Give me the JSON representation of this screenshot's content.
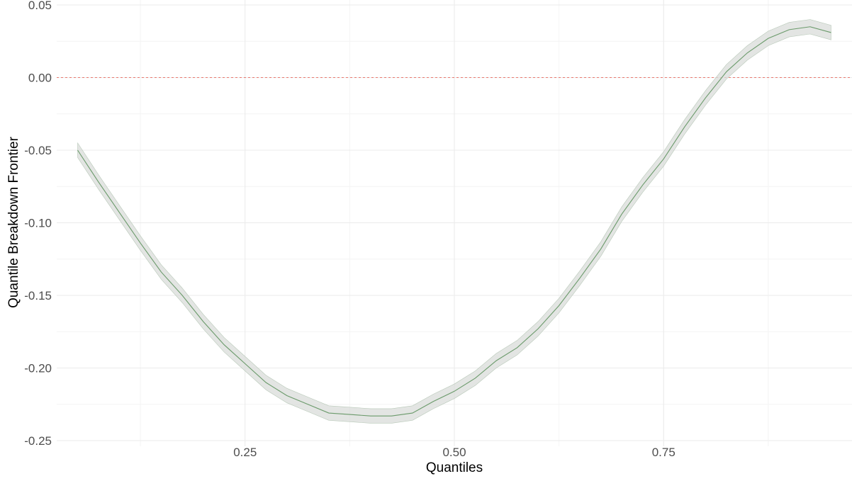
{
  "chart_data": {
    "type": "line",
    "title": "",
    "xlabel": "Quantiles",
    "ylabel": "Quantile Breakdown Frontier",
    "xlim": [
      0.025,
      0.975
    ],
    "ylim": [
      -0.25,
      0.05
    ],
    "x_ticks": [
      {
        "value": 0.25,
        "label": "0.25"
      },
      {
        "value": 0.5,
        "label": "0.50"
      },
      {
        "value": 0.75,
        "label": "0.75"
      }
    ],
    "y_ticks": [
      {
        "value": 0.05,
        "label": "0.05"
      },
      {
        "value": 0.0,
        "label": "0.00"
      },
      {
        "value": -0.05,
        "label": "-0.05"
      },
      {
        "value": -0.1,
        "label": "-0.10"
      },
      {
        "value": -0.15,
        "label": "-0.15"
      },
      {
        "value": -0.2,
        "label": "-0.20"
      },
      {
        "value": -0.25,
        "label": "-0.25"
      }
    ],
    "x_minor_ticks": [
      0.125,
      0.375,
      0.625,
      0.875
    ],
    "y_minor_ticks": [
      0.025,
      -0.025,
      -0.075,
      -0.125,
      -0.175,
      -0.225
    ],
    "grid": true,
    "reference_line": {
      "y": 0.0,
      "style": "dashed",
      "color": "#e8786f"
    },
    "series": [
      {
        "color": "#6b9a6b",
        "band_color": "#d9dcd9",
        "x": [
          0.05,
          0.075,
          0.1,
          0.125,
          0.15,
          0.175,
          0.2,
          0.225,
          0.25,
          0.275,
          0.3,
          0.325,
          0.35,
          0.375,
          0.4,
          0.425,
          0.45,
          0.475,
          0.5,
          0.525,
          0.55,
          0.575,
          0.6,
          0.625,
          0.65,
          0.675,
          0.7,
          0.725,
          0.75,
          0.775,
          0.8,
          0.825,
          0.85,
          0.875,
          0.9,
          0.925,
          0.95
        ],
        "y": [
          -0.05,
          -0.072,
          -0.093,
          -0.114,
          -0.134,
          -0.15,
          -0.168,
          -0.184,
          -0.197,
          -0.21,
          -0.219,
          -0.225,
          -0.231,
          -0.232,
          -0.233,
          -0.233,
          -0.231,
          -0.223,
          -0.216,
          -0.207,
          -0.195,
          -0.186,
          -0.173,
          -0.157,
          -0.138,
          -0.118,
          -0.094,
          -0.074,
          -0.056,
          -0.034,
          -0.014,
          0.004,
          0.017,
          0.027,
          0.033,
          0.035,
          0.031
        ],
        "lower": [
          -0.055,
          -0.077,
          -0.098,
          -0.119,
          -0.139,
          -0.155,
          -0.173,
          -0.189,
          -0.202,
          -0.215,
          -0.224,
          -0.23,
          -0.236,
          -0.237,
          -0.238,
          -0.238,
          -0.236,
          -0.228,
          -0.221,
          -0.212,
          -0.2,
          -0.191,
          -0.178,
          -0.162,
          -0.143,
          -0.123,
          -0.099,
          -0.079,
          -0.061,
          -0.039,
          -0.019,
          -0.001,
          0.012,
          0.022,
          0.028,
          0.03,
          0.026
        ],
        "upper": [
          -0.045,
          -0.067,
          -0.088,
          -0.109,
          -0.129,
          -0.145,
          -0.163,
          -0.179,
          -0.192,
          -0.205,
          -0.214,
          -0.22,
          -0.226,
          -0.227,
          -0.228,
          -0.228,
          -0.226,
          -0.218,
          -0.211,
          -0.202,
          -0.19,
          -0.181,
          -0.168,
          -0.152,
          -0.133,
          -0.113,
          -0.089,
          -0.069,
          -0.051,
          -0.029,
          -0.009,
          0.009,
          0.022,
          0.032,
          0.038,
          0.04,
          0.036
        ]
      }
    ]
  }
}
